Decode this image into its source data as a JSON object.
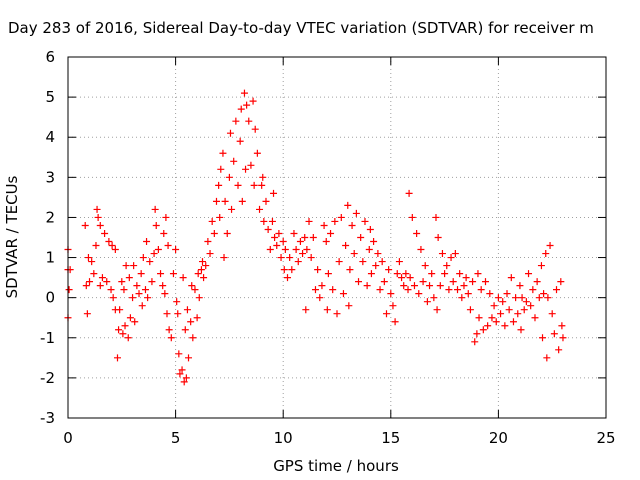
{
  "chart_data": {
    "type": "scatter",
    "title": "Day 283 of 2016, Sidereal Day-to-day VTEC variation (SDTVAR) for receiver m",
    "xlabel": "GPS time / hours",
    "ylabel": "SDTVAR / TECUs",
    "xlim": [
      0,
      25
    ],
    "ylim": [
      -3,
      6
    ],
    "xticks": [
      "0",
      "5",
      "10",
      "15",
      "20",
      "25"
    ],
    "yticks": [
      "-3",
      "-2",
      "-1",
      "0",
      "1",
      "2",
      "3",
      "4",
      "5",
      "6"
    ],
    "grid": true,
    "marker": "+",
    "color": "#ff0000",
    "series": [
      {
        "points": [
          [
            0.0,
            0.7
          ],
          [
            0.0,
            1.2
          ],
          [
            0.0,
            -0.5
          ],
          [
            0.05,
            0.2
          ],
          [
            0.1,
            0.7
          ],
          [
            0.8,
            1.8
          ],
          [
            0.85,
            0.3
          ],
          [
            0.9,
            -0.4
          ],
          [
            0.95,
            1.0
          ],
          [
            1.0,
            0.4
          ],
          [
            1.1,
            0.9
          ],
          [
            1.2,
            0.6
          ],
          [
            1.3,
            1.3
          ],
          [
            1.35,
            2.2
          ],
          [
            1.4,
            2.0
          ],
          [
            1.5,
            0.3
          ],
          [
            1.5,
            1.8
          ],
          [
            1.6,
            0.5
          ],
          [
            1.7,
            1.6
          ],
          [
            1.8,
            0.4
          ],
          [
            1.9,
            1.4
          ],
          [
            2.0,
            0.2
          ],
          [
            2.05,
            1.3
          ],
          [
            2.1,
            0.0
          ],
          [
            2.2,
            1.2
          ],
          [
            2.2,
            -0.3
          ],
          [
            2.3,
            -1.5
          ],
          [
            2.35,
            -0.8
          ],
          [
            2.4,
            -0.3
          ],
          [
            2.5,
            0.4
          ],
          [
            2.55,
            -0.9
          ],
          [
            2.6,
            0.2
          ],
          [
            2.65,
            -0.7
          ],
          [
            2.7,
            0.8
          ],
          [
            2.8,
            -1.0
          ],
          [
            2.85,
            0.5
          ],
          [
            2.9,
            -0.5
          ],
          [
            3.0,
            0.0
          ],
          [
            3.05,
            0.8
          ],
          [
            3.1,
            -0.6
          ],
          [
            3.2,
            0.3
          ],
          [
            3.3,
            0.1
          ],
          [
            3.4,
            0.6
          ],
          [
            3.45,
            -0.2
          ],
          [
            3.5,
            1.0
          ],
          [
            3.6,
            0.2
          ],
          [
            3.65,
            1.4
          ],
          [
            3.7,
            0.0
          ],
          [
            3.8,
            0.9
          ],
          [
            3.9,
            0.4
          ],
          [
            4.0,
            1.1
          ],
          [
            4.05,
            2.2
          ],
          [
            4.1,
            1.8
          ],
          [
            4.2,
            1.2
          ],
          [
            4.3,
            0.6
          ],
          [
            4.4,
            0.3
          ],
          [
            4.45,
            1.6
          ],
          [
            4.5,
            0.1
          ],
          [
            4.55,
            2.0
          ],
          [
            4.6,
            -0.4
          ],
          [
            4.65,
            1.3
          ],
          [
            4.7,
            -0.8
          ],
          [
            4.8,
            -1.0
          ],
          [
            4.9,
            0.6
          ],
          [
            5.0,
            1.2
          ],
          [
            5.05,
            -0.1
          ],
          [
            5.1,
            -0.4
          ],
          [
            5.15,
            -1.4
          ],
          [
            5.2,
            -1.9
          ],
          [
            5.3,
            -1.8
          ],
          [
            5.35,
            0.5
          ],
          [
            5.4,
            -2.1
          ],
          [
            5.45,
            -0.8
          ],
          [
            5.5,
            -2.0
          ],
          [
            5.55,
            -0.3
          ],
          [
            5.6,
            -1.5
          ],
          [
            5.7,
            -0.6
          ],
          [
            5.75,
            0.3
          ],
          [
            5.8,
            -1.0
          ],
          [
            5.9,
            0.2
          ],
          [
            6.0,
            -0.5
          ],
          [
            6.05,
            0.6
          ],
          [
            6.1,
            0.0
          ],
          [
            6.2,
            0.7
          ],
          [
            6.25,
            0.9
          ],
          [
            6.3,
            0.5
          ],
          [
            6.4,
            0.8
          ],
          [
            6.5,
            1.4
          ],
          [
            6.6,
            1.1
          ],
          [
            6.7,
            1.9
          ],
          [
            6.8,
            1.6
          ],
          [
            6.9,
            2.4
          ],
          [
            7.0,
            2.8
          ],
          [
            7.05,
            2.0
          ],
          [
            7.1,
            3.2
          ],
          [
            7.2,
            3.6
          ],
          [
            7.25,
            1.0
          ],
          [
            7.3,
            2.4
          ],
          [
            7.4,
            1.6
          ],
          [
            7.5,
            3.0
          ],
          [
            7.55,
            4.1
          ],
          [
            7.6,
            2.2
          ],
          [
            7.7,
            3.4
          ],
          [
            7.8,
            4.4
          ],
          [
            7.9,
            2.8
          ],
          [
            8.0,
            3.9
          ],
          [
            8.05,
            4.7
          ],
          [
            8.1,
            2.4
          ],
          [
            8.2,
            5.1
          ],
          [
            8.25,
            3.2
          ],
          [
            8.3,
            4.8
          ],
          [
            8.4,
            4.4
          ],
          [
            8.5,
            3.3
          ],
          [
            8.6,
            4.9
          ],
          [
            8.65,
            2.8
          ],
          [
            8.7,
            4.2
          ],
          [
            8.8,
            3.6
          ],
          [
            8.9,
            2.2
          ],
          [
            9.0,
            2.8
          ],
          [
            9.05,
            3.0
          ],
          [
            9.1,
            1.9
          ],
          [
            9.2,
            2.4
          ],
          [
            9.3,
            1.7
          ],
          [
            9.4,
            1.2
          ],
          [
            9.5,
            1.9
          ],
          [
            9.55,
            2.6
          ],
          [
            9.6,
            1.5
          ],
          [
            9.7,
            1.3
          ],
          [
            9.8,
            1.6
          ],
          [
            9.9,
            1.0
          ],
          [
            10.0,
            1.4
          ],
          [
            10.05,
            0.7
          ],
          [
            10.1,
            1.2
          ],
          [
            10.2,
            0.5
          ],
          [
            10.3,
            1.0
          ],
          [
            10.4,
            0.7
          ],
          [
            10.5,
            1.6
          ],
          [
            10.6,
            1.2
          ],
          [
            10.7,
            0.9
          ],
          [
            10.8,
            1.4
          ],
          [
            10.9,
            1.1
          ],
          [
            11.0,
            1.5
          ],
          [
            11.05,
            -0.3
          ],
          [
            11.1,
            1.2
          ],
          [
            11.2,
            1.9
          ],
          [
            11.3,
            1.0
          ],
          [
            11.4,
            1.5
          ],
          [
            11.5,
            0.2
          ],
          [
            11.6,
            0.7
          ],
          [
            11.7,
            0.0
          ],
          [
            11.8,
            0.3
          ],
          [
            11.9,
            1.8
          ],
          [
            12.0,
            1.4
          ],
          [
            12.05,
            -0.3
          ],
          [
            12.1,
            0.6
          ],
          [
            12.2,
            1.6
          ],
          [
            12.3,
            0.2
          ],
          [
            12.4,
            1.9
          ],
          [
            12.5,
            -0.4
          ],
          [
            12.6,
            0.9
          ],
          [
            12.7,
            2.0
          ],
          [
            12.8,
            0.1
          ],
          [
            12.9,
            1.3
          ],
          [
            13.0,
            2.3
          ],
          [
            13.05,
            -0.2
          ],
          [
            13.1,
            0.7
          ],
          [
            13.2,
            1.8
          ],
          [
            13.3,
            1.1
          ],
          [
            13.4,
            2.1
          ],
          [
            13.5,
            0.4
          ],
          [
            13.6,
            1.5
          ],
          [
            13.7,
            0.9
          ],
          [
            13.8,
            1.9
          ],
          [
            13.9,
            0.3
          ],
          [
            14.0,
            1.2
          ],
          [
            14.05,
            1.7
          ],
          [
            14.1,
            0.6
          ],
          [
            14.2,
            1.4
          ],
          [
            14.3,
            0.8
          ],
          [
            14.4,
            1.1
          ],
          [
            14.5,
            0.2
          ],
          [
            14.6,
            0.9
          ],
          [
            14.7,
            0.4
          ],
          [
            14.8,
            -0.4
          ],
          [
            14.9,
            0.7
          ],
          [
            15.0,
            0.1
          ],
          [
            15.1,
            -0.2
          ],
          [
            15.2,
            -0.6
          ],
          [
            15.3,
            0.6
          ],
          [
            15.4,
            0.9
          ],
          [
            15.5,
            0.5
          ],
          [
            15.6,
            0.3
          ],
          [
            15.7,
            0.6
          ],
          [
            15.8,
            0.2
          ],
          [
            15.85,
            2.6
          ],
          [
            15.9,
            0.5
          ],
          [
            16.0,
            2.0
          ],
          [
            16.1,
            0.3
          ],
          [
            16.2,
            1.6
          ],
          [
            16.3,
            0.1
          ],
          [
            16.4,
            1.2
          ],
          [
            16.5,
            0.4
          ],
          [
            16.6,
            0.8
          ],
          [
            16.7,
            -0.1
          ],
          [
            16.8,
            0.3
          ],
          [
            16.9,
            0.6
          ],
          [
            17.0,
            0.0
          ],
          [
            17.1,
            2.0
          ],
          [
            17.15,
            -0.3
          ],
          [
            17.2,
            1.5
          ],
          [
            17.3,
            0.3
          ],
          [
            17.4,
            1.1
          ],
          [
            17.5,
            0.6
          ],
          [
            17.6,
            0.8
          ],
          [
            17.7,
            0.2
          ],
          [
            17.8,
            1.0
          ],
          [
            17.9,
            0.4
          ],
          [
            18.0,
            1.1
          ],
          [
            18.1,
            0.2
          ],
          [
            18.2,
            0.6
          ],
          [
            18.3,
            0.0
          ],
          [
            18.4,
            0.3
          ],
          [
            18.5,
            0.5
          ],
          [
            18.6,
            0.1
          ],
          [
            18.7,
            -0.3
          ],
          [
            18.8,
            0.4
          ],
          [
            18.9,
            -1.1
          ],
          [
            19.0,
            -0.9
          ],
          [
            19.05,
            0.6
          ],
          [
            19.1,
            -0.5
          ],
          [
            19.2,
            0.2
          ],
          [
            19.3,
            -0.8
          ],
          [
            19.4,
            0.4
          ],
          [
            19.5,
            -0.7
          ],
          [
            19.6,
            0.1
          ],
          [
            19.7,
            -0.5
          ],
          [
            19.8,
            -0.2
          ],
          [
            19.9,
            -0.6
          ],
          [
            20.0,
            0.0
          ],
          [
            20.1,
            -0.4
          ],
          [
            20.2,
            -0.1
          ],
          [
            20.3,
            -0.7
          ],
          [
            20.4,
            0.1
          ],
          [
            20.5,
            -0.3
          ],
          [
            20.6,
            0.5
          ],
          [
            20.7,
            -0.6
          ],
          [
            20.8,
            0.0
          ],
          [
            20.9,
            -0.4
          ],
          [
            21.0,
            0.3
          ],
          [
            21.05,
            -0.8
          ],
          [
            21.1,
            0.0
          ],
          [
            21.2,
            -0.3
          ],
          [
            21.3,
            -0.1
          ],
          [
            21.4,
            0.6
          ],
          [
            21.5,
            -0.2
          ],
          [
            21.6,
            0.2
          ],
          [
            21.7,
            -0.5
          ],
          [
            21.8,
            0.4
          ],
          [
            21.9,
            0.0
          ],
          [
            22.0,
            0.8
          ],
          [
            22.05,
            -1.0
          ],
          [
            22.1,
            0.1
          ],
          [
            22.2,
            1.1
          ],
          [
            22.25,
            -1.5
          ],
          [
            22.3,
            0.0
          ],
          [
            22.4,
            1.3
          ],
          [
            22.5,
            -0.4
          ],
          [
            22.6,
            -0.9
          ],
          [
            22.7,
            0.2
          ],
          [
            22.8,
            -1.3
          ],
          [
            22.9,
            0.4
          ],
          [
            22.95,
            -0.7
          ],
          [
            23.0,
            -1.0
          ]
        ]
      }
    ]
  }
}
